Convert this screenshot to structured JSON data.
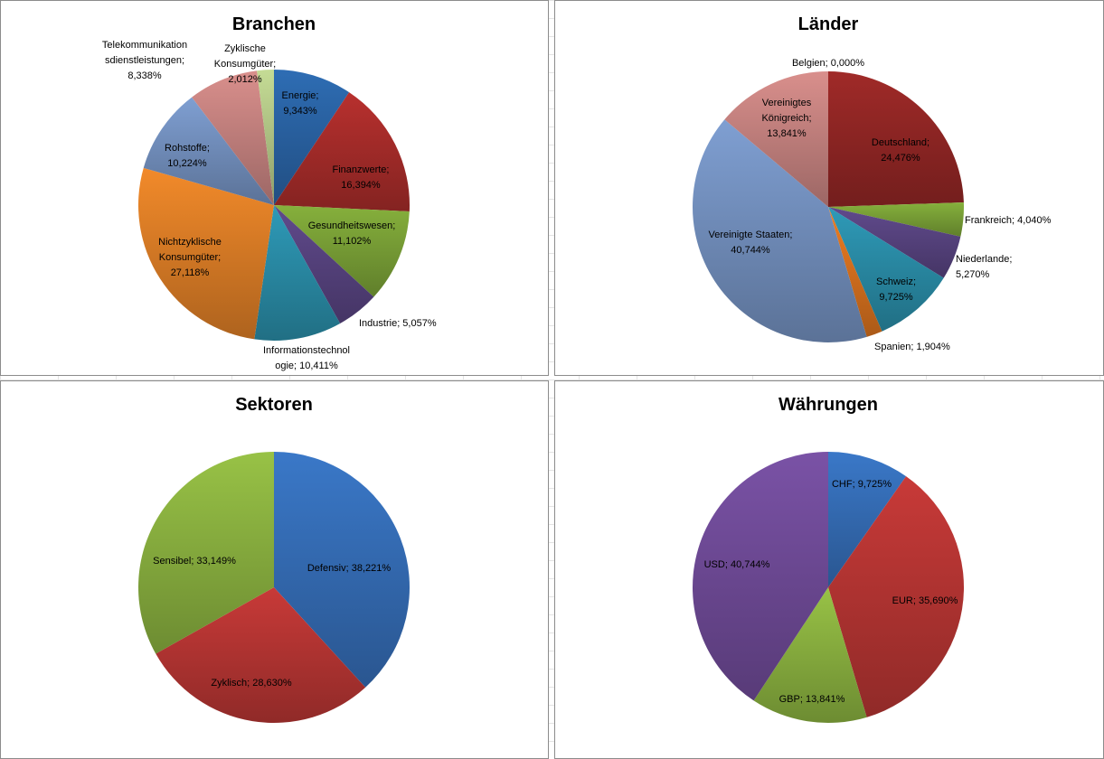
{
  "chart_data": [
    {
      "type": "pie",
      "title": "Branchen",
      "slices": [
        {
          "label": "Energie; 9,343%",
          "value": 9.343,
          "color": "#2e6db4"
        },
        {
          "label": "Finanzwerte; 16,394%",
          "value": 16.394,
          "color": "#b8302e"
        },
        {
          "label": "Gesundheitswesen; 11,102%",
          "value": 11.102,
          "color": "#86b03c"
        },
        {
          "label": "Industrie; 5,057%",
          "value": 5.057,
          "color": "#604a8c"
        },
        {
          "label": "Informationstechnologie; 10,411%",
          "value": 10.411,
          "color": "#2e9ab8"
        },
        {
          "label": "Nichtzyklische Konsumgüter; 27,118%",
          "value": 27.118,
          "color": "#f28a2a"
        },
        {
          "label": "Rohstoffe; 10,224%",
          "value": 10.224,
          "color": "#7f9fd2"
        },
        {
          "label": "Telekommunikationsdienstleistungen; 8,338%",
          "value": 8.338,
          "color": "#d98f8c"
        },
        {
          "label": "Zyklische Konsumgüter; 2,012%",
          "value": 2.012,
          "color": "#c5dc95"
        }
      ]
    },
    {
      "type": "pie",
      "title": "Länder",
      "slices": [
        {
          "label": "Belgien; 0,000%",
          "value": 0.0,
          "color": "#2e6db4"
        },
        {
          "label": "Deutschland; 24,476%",
          "value": 24.476,
          "color": "#a02a28"
        },
        {
          "label": "Frankreich; 4,040%",
          "value": 4.04,
          "color": "#86b03c"
        },
        {
          "label": "Niederlande; 5,270%",
          "value": 5.27,
          "color": "#604a8c"
        },
        {
          "label": "Schweiz; 9,725%",
          "value": 9.725,
          "color": "#2e9ab8"
        },
        {
          "label": "Spanien; 1,904%",
          "value": 1.904,
          "color": "#ee7d22"
        },
        {
          "label": "Vereinigte Staaten; 40,744%",
          "value": 40.744,
          "color": "#7f9fd2"
        },
        {
          "label": "Vereinigtes Königreich; 13,841%",
          "value": 13.841,
          "color": "#d98f8c"
        }
      ]
    },
    {
      "type": "pie",
      "title": "Sektoren",
      "slices": [
        {
          "label": "Defensiv; 38,221%",
          "value": 38.221,
          "color": "#3a78c8"
        },
        {
          "label": "Zyklisch; 28,630%",
          "value": 28.63,
          "color": "#c83a38"
        },
        {
          "label": "Sensibel; 33,149%",
          "value": 33.149,
          "color": "#98c246"
        }
      ]
    },
    {
      "type": "pie",
      "title": "Währungen",
      "slices": [
        {
          "label": "CHF; 9,725%",
          "value": 9.725,
          "color": "#3a78c8"
        },
        {
          "label": "EUR; 35,690%",
          "value": 35.69,
          "color": "#c83a38"
        },
        {
          "label": "GBP; 13,841%",
          "value": 13.841,
          "color": "#98c246"
        },
        {
          "label": "USD; 40,744%",
          "value": 40.744,
          "color": "#7a52a6"
        }
      ]
    }
  ]
}
